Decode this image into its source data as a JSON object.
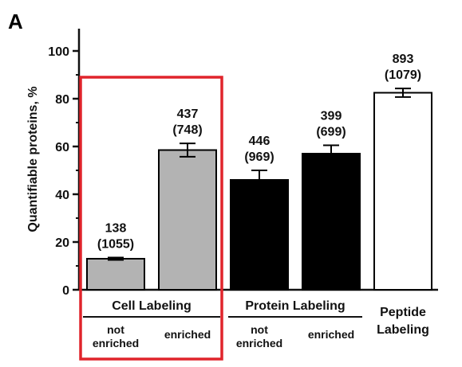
{
  "panel_label": "A",
  "chart_data": {
    "type": "bar",
    "ylabel": "Quantifiable proteins, %",
    "ylim": [
      0,
      100
    ],
    "yticks": [
      0,
      20,
      40,
      60,
      80,
      100
    ],
    "bars": [
      {
        "id": "cell-not-enriched",
        "value": 13.0,
        "error": 0.5,
        "count_label": "138",
        "total_label": "(1055)",
        "fill": "#b3b3b3"
      },
      {
        "id": "cell-enriched",
        "value": 58.5,
        "error": 2.8,
        "count_label": "437",
        "total_label": "(748)",
        "fill": "#b3b3b3"
      },
      {
        "id": "protein-not-enriched",
        "value": 46.0,
        "error": 4.0,
        "count_label": "446",
        "total_label": "(969)",
        "fill": "#000000"
      },
      {
        "id": "protein-enriched",
        "value": 57.0,
        "error": 3.5,
        "count_label": "399",
        "total_label": "(699)",
        "fill": "#000000"
      },
      {
        "id": "peptide",
        "value": 82.5,
        "error": 1.8,
        "count_label": "893",
        "total_label": "(1079)",
        "fill": "#ffffff"
      }
    ],
    "groups": [
      {
        "id": "cell-labeling",
        "label": "Cell Labeling",
        "sublabels": [
          [
            "not",
            "enriched"
          ],
          [
            "enriched"
          ]
        ]
      },
      {
        "id": "protein-labeling",
        "label": "Protein Labeling",
        "sublabels": [
          [
            "not",
            "enriched"
          ],
          [
            "enriched"
          ]
        ]
      },
      {
        "id": "peptide-labeling",
        "label_lines": [
          "Peptide",
          "Labeling"
        ]
      }
    ],
    "highlight_color": "#e0242b"
  }
}
